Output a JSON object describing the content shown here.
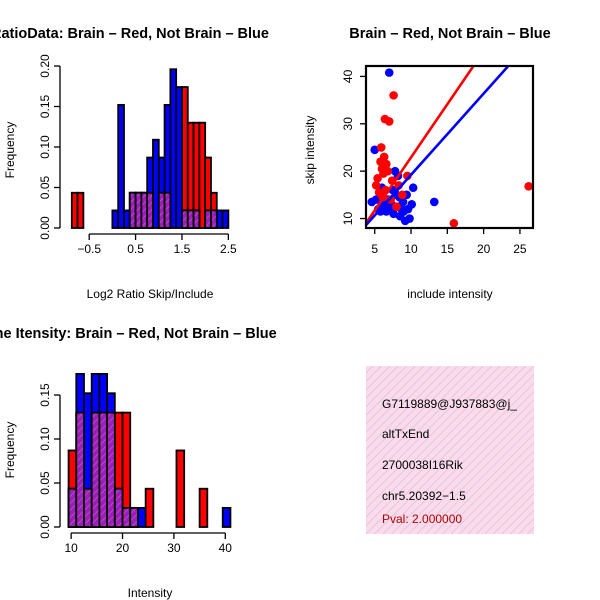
{
  "colors": {
    "red": "#ff0000",
    "blue": "#0000ff",
    "purple": "#9a1fb4",
    "purple_hatch": "#c040d8",
    "info_bg": "#f8dcec",
    "info_hatch": "#eab8d6",
    "pval": "#b00000"
  },
  "chart_data": [
    {
      "id": "ratio",
      "type": "histogram",
      "title": "RatioData: Brain – Red, Not Brain – Blue",
      "xlabel": "Log2 Ratio Skip/Include",
      "ylabel": "Frequency",
      "xlim": [
        -1.0,
        2.6
      ],
      "ylim": [
        0,
        0.2
      ],
      "xticks": [
        -0.5,
        0.5,
        1.5,
        2.5
      ],
      "xtick_labels": [
        "−0.5",
        "0.5",
        "1.5",
        "2.5"
      ],
      "yticks": [
        0,
        0.05,
        0.1,
        0.15,
        0.2
      ],
      "ytick_labels": [
        "0.00",
        "0.05",
        "0.10",
        "0.15",
        "0.20"
      ],
      "bin_width": 0.125,
      "series": [
        {
          "name": "Brain",
          "color": "red",
          "bins": [
            {
              "x0": -0.875,
              "v": 0.0435
            },
            {
              "x0": -0.75,
              "v": 0.0435
            },
            {
              "x0": 0.375,
              "v": 0.0435
            },
            {
              "x0": 0.5,
              "v": 0.0435
            },
            {
              "x0": 0.625,
              "v": 0.0435
            },
            {
              "x0": 0.75,
              "v": 0.0435
            },
            {
              "x0": 1.0,
              "v": 0.0435
            },
            {
              "x0": 1.125,
              "v": 0.0435
            },
            {
              "x0": 1.5,
              "v": 0.174
            },
            {
              "x0": 1.625,
              "v": 0.13
            },
            {
              "x0": 1.75,
              "v": 0.13
            },
            {
              "x0": 1.875,
              "v": 0.13
            },
            {
              "x0": 2.0,
              "v": 0.087
            },
            {
              "x0": 2.125,
              "v": 0.0435
            }
          ]
        },
        {
          "name": "Not Brain",
          "color": "blue",
          "bins": [
            {
              "x0": 0.0,
              "v": 0.0217
            },
            {
              "x0": 0.125,
              "v": 0.152
            },
            {
              "x0": 0.25,
              "v": 0.0217
            },
            {
              "x0": 0.375,
              "v": 0.0435
            },
            {
              "x0": 0.5,
              "v": 0.0435
            },
            {
              "x0": 0.625,
              "v": 0.0435
            },
            {
              "x0": 0.75,
              "v": 0.087
            },
            {
              "x0": 0.875,
              "v": 0.109
            },
            {
              "x0": 1.0,
              "v": 0.087
            },
            {
              "x0": 1.125,
              "v": 0.152
            },
            {
              "x0": 1.25,
              "v": 0.196
            },
            {
              "x0": 1.375,
              "v": 0.174
            },
            {
              "x0": 1.5,
              "v": 0.0217
            },
            {
              "x0": 1.625,
              "v": 0.0217
            },
            {
              "x0": 1.75,
              "v": 0.0217
            },
            {
              "x0": 2.0,
              "v": 0.0217
            },
            {
              "x0": 2.125,
              "v": 0.0217
            },
            {
              "x0": 2.25,
              "v": 0.0217
            },
            {
              "x0": 2.375,
              "v": 0.0217
            }
          ]
        }
      ]
    },
    {
      "id": "scatter",
      "type": "scatter",
      "title": "Brain – Red, Not Brain – Blue",
      "xlabel": "include intensity",
      "ylabel": "skip intensity",
      "xlim": [
        3.8,
        26.8
      ],
      "ylim": [
        8.0,
        42.2
      ],
      "xticks": [
        5,
        10,
        15,
        20,
        25
      ],
      "xtick_labels": [
        "5",
        "10",
        "15",
        "20",
        "25"
      ],
      "yticks": [
        10,
        20,
        30,
        40
      ],
      "ytick_labels": [
        "10",
        "20",
        "30",
        "40"
      ],
      "series": [
        {
          "name": "Brain",
          "color": "red",
          "fit": {
            "x": [
              3.8,
              18.6
            ],
            "y": [
              9.0,
              42.2
            ]
          },
          "points": [
            [
              5.2,
              17.0
            ],
            [
              5.4,
              18.5
            ],
            [
              5.6,
              15.5
            ],
            [
              5.8,
              22.0
            ],
            [
              5.9,
              25.0
            ],
            [
              6.0,
              20.5
            ],
            [
              6.1,
              14.5
            ],
            [
              6.2,
              19.5
            ],
            [
              6.3,
              23.0
            ],
            [
              6.4,
              31.0
            ],
            [
              6.5,
              16.0
            ],
            [
              6.6,
              21.5
            ],
            [
              6.8,
              20.0
            ],
            [
              7.0,
              30.5
            ],
            [
              7.2,
              14.0
            ],
            [
              7.4,
              18.0
            ],
            [
              7.6,
              36.0
            ],
            [
              8.0,
              12.5
            ],
            [
              8.3,
              17.0
            ],
            [
              8.8,
              15.0
            ],
            [
              9.5,
              19.0
            ],
            [
              15.9,
              9.0
            ],
            [
              26.2,
              16.8
            ]
          ]
        },
        {
          "name": "Not Brain",
          "color": "blue",
          "fit": {
            "x": [
              3.8,
              23.4
            ],
            "y": [
              8.6,
              42.2
            ]
          },
          "points": [
            [
              4.6,
              13.5
            ],
            [
              5.0,
              24.5
            ],
            [
              5.2,
              14.0
            ],
            [
              5.5,
              12.0
            ],
            [
              5.8,
              11.5
            ],
            [
              6.0,
              16.5
            ],
            [
              6.2,
              13.0
            ],
            [
              6.4,
              12.5
            ],
            [
              6.6,
              11.5
            ],
            [
              6.8,
              14.0
            ],
            [
              7.0,
              40.8
            ],
            [
              7.1,
              12.0
            ],
            [
              7.3,
              13.0
            ],
            [
              7.5,
              16.0
            ],
            [
              7.6,
              11.0
            ],
            [
              7.8,
              20.0
            ],
            [
              8.0,
              15.0
            ],
            [
              8.1,
              12.5
            ],
            [
              8.2,
              19.0
            ],
            [
              8.4,
              14.5
            ],
            [
              8.5,
              10.5
            ],
            [
              8.7,
              12.0
            ],
            [
              8.9,
              13.5
            ],
            [
              9.0,
              11.5
            ],
            [
              9.2,
              9.5
            ],
            [
              9.4,
              15.0
            ],
            [
              9.6,
              12.0
            ],
            [
              9.8,
              10.0
            ],
            [
              10.1,
              13.0
            ],
            [
              10.3,
              16.5
            ],
            [
              13.2,
              13.5
            ]
          ]
        }
      ]
    },
    {
      "id": "intensity",
      "type": "histogram",
      "title": "Gene Itensity: Brain – Red, Not Brain – Blue",
      "xlabel": "Intensity",
      "ylabel": "Frequency",
      "xlim": [
        9,
        41.5
      ],
      "ylim": [
        0,
        0.175
      ],
      "xticks": [
        10,
        20,
        30,
        40
      ],
      "xtick_labels": [
        "10",
        "20",
        "30",
        "40"
      ],
      "yticks": [
        0,
        0.05,
        0.1,
        0.15
      ],
      "ytick_labels": [
        "0.00",
        "0.05",
        "0.10",
        "0.15"
      ],
      "bin_width": 1.5,
      "series": [
        {
          "name": "Brain",
          "color": "red",
          "bins": [
            {
              "x0": 9.5,
              "v": 0.087
            },
            {
              "x0": 11,
              "v": 0.13
            },
            {
              "x0": 12.5,
              "v": 0.0435
            },
            {
              "x0": 14,
              "v": 0.13
            },
            {
              "x0": 15.5,
              "v": 0.13
            },
            {
              "x0": 17,
              "v": 0.13
            },
            {
              "x0": 18.5,
              "v": 0.13
            },
            {
              "x0": 20,
              "v": 0.13
            },
            {
              "x0": 21.5,
              "v": 0.0217
            },
            {
              "x0": 24.5,
              "v": 0.0435
            },
            {
              "x0": 30.5,
              "v": 0.087
            },
            {
              "x0": 35,
              "v": 0.0435
            }
          ]
        },
        {
          "name": "Not Brain",
          "color": "blue",
          "bins": [
            {
              "x0": 9.5,
              "v": 0.0435
            },
            {
              "x0": 11,
              "v": 0.174
            },
            {
              "x0": 12.5,
              "v": 0.152
            },
            {
              "x0": 14,
              "v": 0.174
            },
            {
              "x0": 15.5,
              "v": 0.174
            },
            {
              "x0": 17,
              "v": 0.152
            },
            {
              "x0": 18.5,
              "v": 0.0435
            },
            {
              "x0": 20,
              "v": 0.0217
            },
            {
              "x0": 21.5,
              "v": 0.0217
            },
            {
              "x0": 23,
              "v": 0.0217
            },
            {
              "x0": 39.5,
              "v": 0.0217
            }
          ]
        }
      ]
    }
  ],
  "info": {
    "event_id": "G7119889@J937883@j_",
    "event_type": "altTxEnd",
    "gene": "2700038I16Rik",
    "location": "chr5.20392−1.5",
    "pval": "Pval: 2.000000"
  }
}
